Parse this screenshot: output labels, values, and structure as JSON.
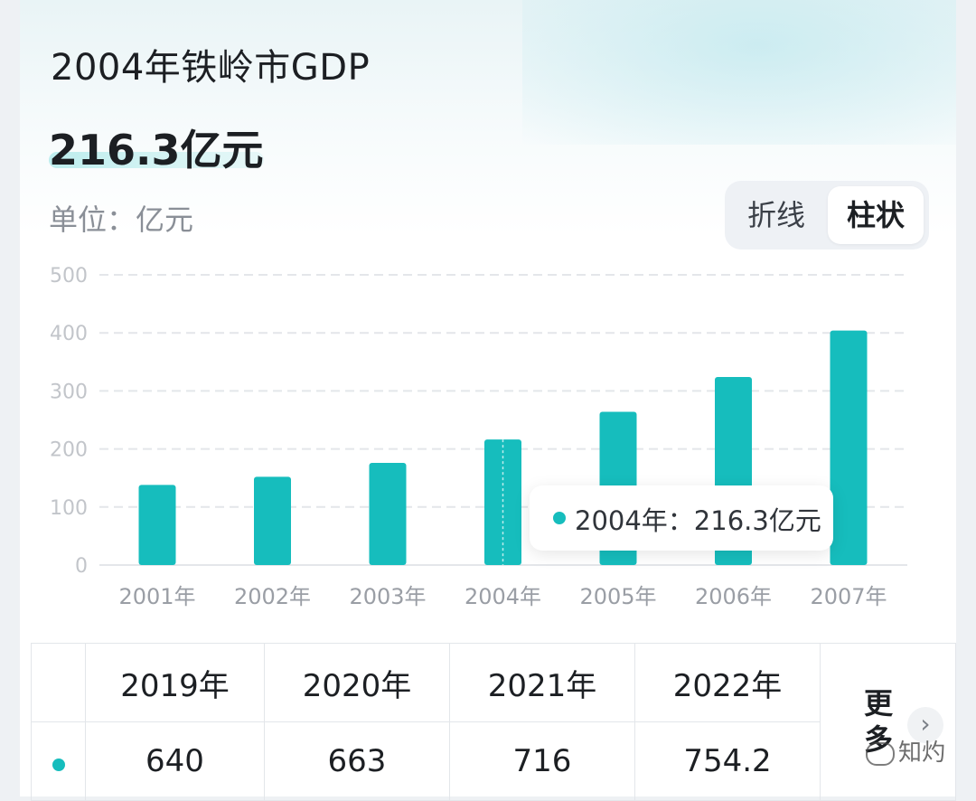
{
  "header": {
    "title": "2004年铁岭市GDP",
    "value": "216.3亿元",
    "unit_label": "单位：亿元"
  },
  "view_toggle": {
    "options": [
      "折线",
      "柱状"
    ],
    "selected": "柱状"
  },
  "tooltip": {
    "text": "2004年：216.3亿元"
  },
  "colors": {
    "bar": "#16bdbd",
    "dot": "#16bdbd"
  },
  "chart_data": {
    "type": "bar",
    "categories": [
      "2001年",
      "2002年",
      "2003年",
      "2004年",
      "2005年",
      "2006年",
      "2007年"
    ],
    "values": [
      138,
      152,
      176,
      216.3,
      264,
      324,
      404
    ],
    "yticks": [
      0,
      100,
      200,
      300,
      400,
      500
    ],
    "ylim": [
      0,
      500
    ],
    "grid": true,
    "highlighted_category": "2004年"
  },
  "table": {
    "years": [
      "2019年",
      "2020年",
      "2021年",
      "2022年"
    ],
    "values": [
      "640",
      "663",
      "716",
      "754.2"
    ],
    "more_label": "更多"
  },
  "watermark": {
    "text": "知灼",
    "icon": "wechat-icon"
  },
  "chevron_icon": "chevron-right-icon"
}
